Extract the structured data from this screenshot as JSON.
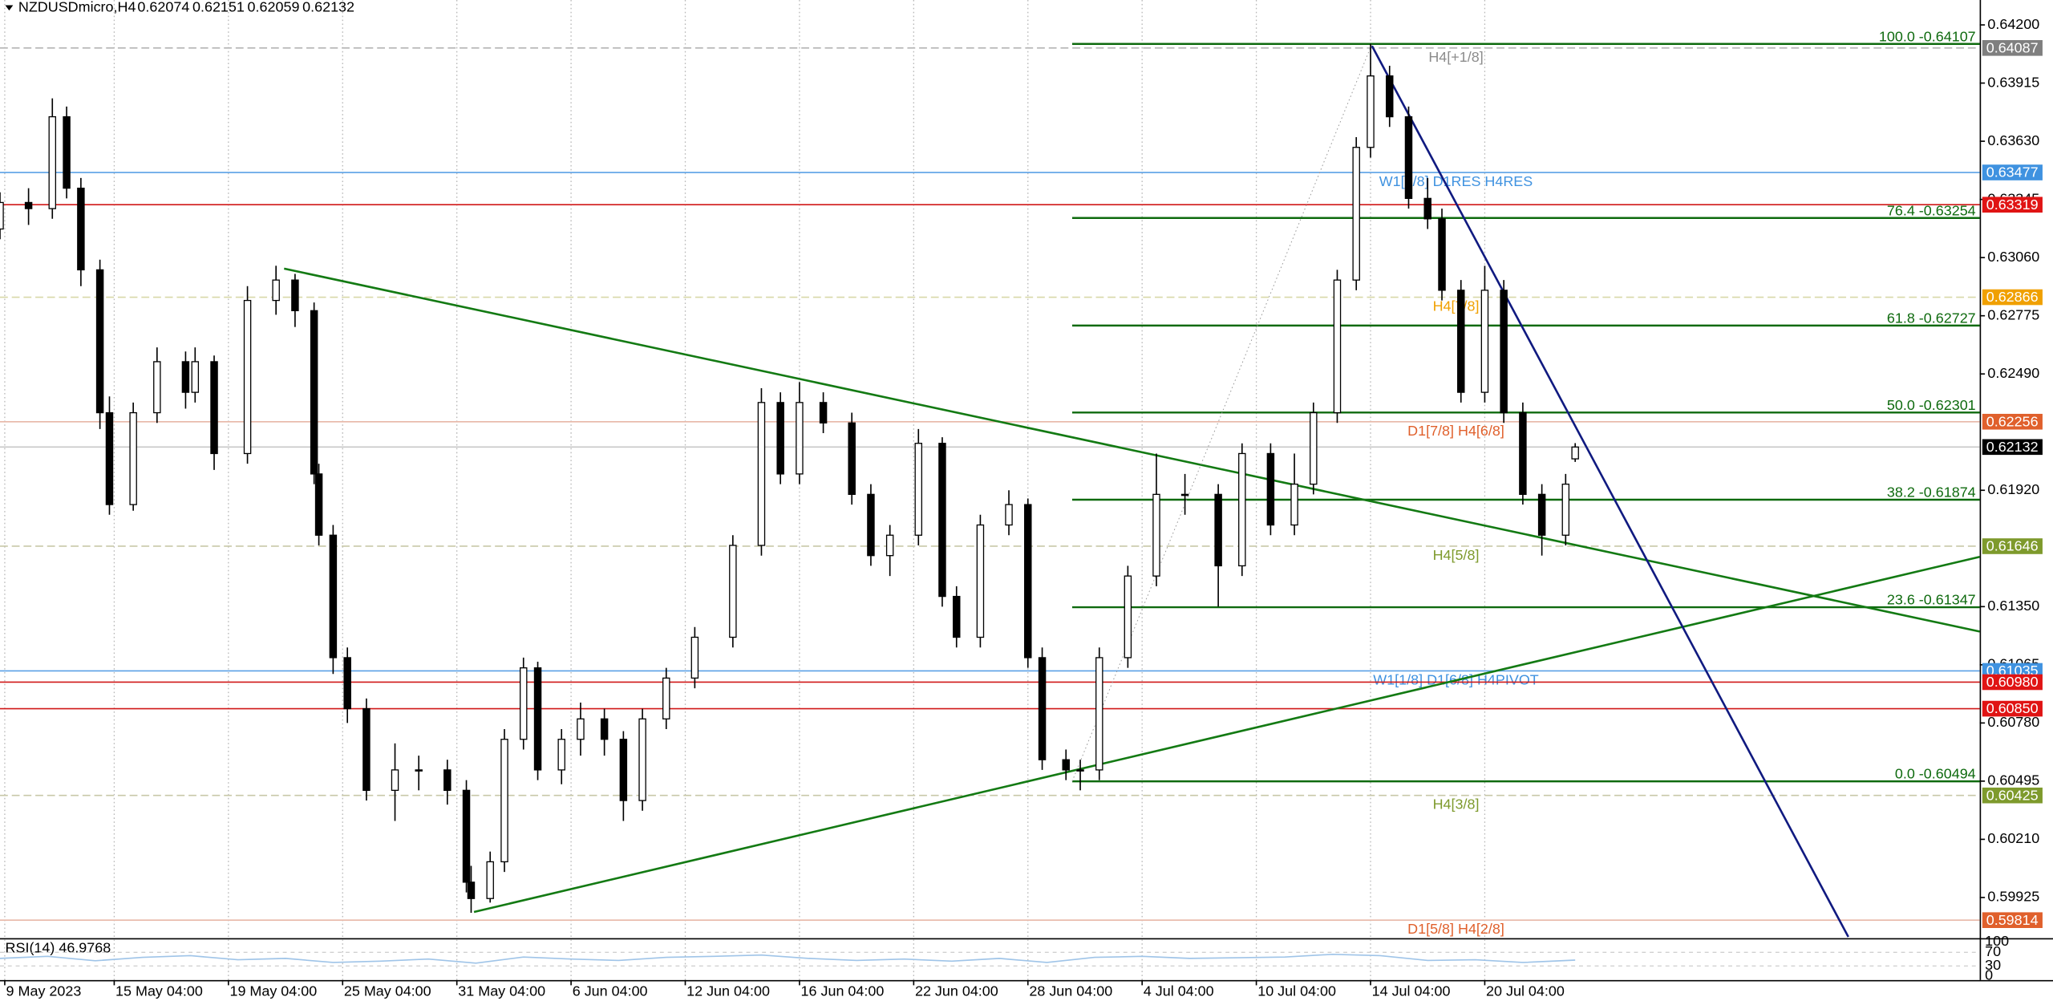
{
  "header": {
    "symbol": "NZDUSDmicro,H4",
    "open": 0.62074,
    "high": 0.62151,
    "low": 0.62059,
    "close": 0.62132
  },
  "chart_data": [
    {
      "type": "candlestick",
      "xlim": [
        0,
        416
      ],
      "ylim": [
        0.59726,
        0.64322
      ],
      "grid": true,
      "yticks": [
        {
          "value": 0.642,
          "label": "0.64200"
        },
        {
          "value": 0.63915,
          "label": "0.63915"
        },
        {
          "value": 0.6363,
          "label": "0.63630"
        },
        {
          "value": 0.63345,
          "label": "0.63345"
        },
        {
          "value": 0.6306,
          "label": "0.63060"
        },
        {
          "value": 0.62775,
          "label": "0.62775"
        },
        {
          "value": 0.6249,
          "label": "0.62490"
        },
        {
          "value": 0.6192,
          "label": "0.61920"
        },
        {
          "value": 0.6135,
          "label": "0.61350"
        },
        {
          "value": 0.61065,
          "label": "0.61065"
        },
        {
          "value": 0.6078,
          "label": "0.60780"
        },
        {
          "value": 0.60495,
          "label": "0.60495"
        },
        {
          "value": 0.6021,
          "label": "0.60210"
        },
        {
          "value": 0.59925,
          "label": "0.59925"
        }
      ],
      "xticks": [
        {
          "value": 1,
          "label": "9 May 2023"
        },
        {
          "value": 24,
          "label": "15 May 04:00"
        },
        {
          "value": 48,
          "label": "19 May 04:00"
        },
        {
          "value": 72,
          "label": "25 May 04:00"
        },
        {
          "value": 96,
          "label": "31 May 04:00"
        },
        {
          "value": 120,
          "label": "6 Jun 04:00"
        },
        {
          "value": 144,
          "label": "12 Jun 04:00"
        },
        {
          "value": 168,
          "label": "16 Jun 04:00"
        },
        {
          "value": 192,
          "label": "22 Jun 04:00"
        },
        {
          "value": 216,
          "label": "28 Jun 04:00"
        },
        {
          "value": 240,
          "label": "4 Jul 04:00"
        },
        {
          "value": 264,
          "label": "10 Jul 04:00"
        },
        {
          "value": 288,
          "label": "14 Jul 04:00"
        },
        {
          "value": 312,
          "label": "20 Jul 04:00"
        }
      ],
      "x": [
        0,
        6,
        11,
        14,
        17,
        21,
        23,
        28,
        33,
        39,
        41,
        45,
        52,
        58,
        62,
        66,
        67,
        70,
        73,
        77,
        83,
        88,
        94,
        98,
        99,
        103,
        106,
        110,
        113,
        118,
        122,
        127,
        131,
        135,
        140,
        146,
        154,
        160,
        164,
        168,
        173,
        179,
        183,
        187,
        193,
        198,
        201,
        206,
        212,
        216,
        219,
        224,
        227,
        231,
        237,
        243,
        249,
        256,
        261,
        267,
        272,
        276,
        281,
        285,
        288,
        292,
        296,
        300,
        303,
        307,
        312,
        316,
        320,
        324,
        329,
        331
      ],
      "open": [
        0.632,
        0.6333,
        0.633,
        0.6375,
        0.634,
        0.63,
        0.623,
        0.6185,
        0.623,
        0.6255,
        0.624,
        0.6255,
        0.621,
        0.6285,
        0.6295,
        0.628,
        0.62,
        0.617,
        0.611,
        0.6085,
        0.6045,
        0.6055,
        0.6055,
        0.6045,
        0.6,
        0.5992,
        0.601,
        0.607,
        0.6105,
        0.6055,
        0.607,
        0.608,
        0.607,
        0.604,
        0.608,
        0.61,
        0.612,
        0.6165,
        0.6235,
        0.62,
        0.6235,
        0.6225,
        0.619,
        0.616,
        0.617,
        0.6215,
        0.614,
        0.612,
        0.6175,
        0.6185,
        0.611,
        0.606,
        0.6055,
        0.6055,
        0.611,
        0.615,
        0.619,
        0.619,
        0.6155,
        0.621,
        0.6175,
        0.6195,
        0.623,
        0.6295,
        0.636,
        0.6395,
        0.6375,
        0.6335,
        0.6325,
        0.629,
        0.624,
        0.629,
        0.623,
        0.619,
        0.617,
        0.62074
      ],
      "high": [
        0.6338,
        0.634,
        0.6384,
        0.638,
        0.6345,
        0.6305,
        0.6238,
        0.6235,
        0.6262,
        0.626,
        0.6262,
        0.6258,
        0.6292,
        0.6302,
        0.6298,
        0.6284,
        0.6205,
        0.6175,
        0.6115,
        0.609,
        0.6068,
        0.6062,
        0.606,
        0.605,
        0.6008,
        0.6015,
        0.6075,
        0.611,
        0.6108,
        0.6075,
        0.6088,
        0.6085,
        0.6074,
        0.6085,
        0.6105,
        0.6125,
        0.617,
        0.6242,
        0.624,
        0.6245,
        0.624,
        0.623,
        0.6195,
        0.6175,
        0.6222,
        0.6218,
        0.6145,
        0.618,
        0.6192,
        0.6188,
        0.6115,
        0.6065,
        0.606,
        0.6115,
        0.6155,
        0.621,
        0.62,
        0.6195,
        0.6215,
        0.6215,
        0.621,
        0.6235,
        0.63,
        0.6365,
        0.64107,
        0.64,
        0.638,
        0.6345,
        0.633,
        0.6295,
        0.6302,
        0.6295,
        0.6235,
        0.6195,
        0.62,
        0.62151
      ],
      "low": [
        0.6315,
        0.6322,
        0.6325,
        0.6335,
        0.6292,
        0.6222,
        0.618,
        0.6182,
        0.6225,
        0.6232,
        0.6235,
        0.6202,
        0.6205,
        0.6278,
        0.6272,
        0.6195,
        0.6165,
        0.6102,
        0.6078,
        0.604,
        0.603,
        0.6045,
        0.6038,
        0.5995,
        0.5985,
        0.599,
        0.6005,
        0.6065,
        0.605,
        0.6048,
        0.6062,
        0.6062,
        0.603,
        0.6035,
        0.6075,
        0.6095,
        0.6115,
        0.616,
        0.6195,
        0.6195,
        0.622,
        0.6185,
        0.6155,
        0.615,
        0.6165,
        0.6135,
        0.6115,
        0.6115,
        0.617,
        0.6105,
        0.6055,
        0.605,
        0.6045,
        0.605,
        0.6105,
        0.6145,
        0.618,
        0.6135,
        0.615,
        0.617,
        0.617,
        0.619,
        0.6225,
        0.629,
        0.6355,
        0.637,
        0.633,
        0.632,
        0.6285,
        0.6235,
        0.6235,
        0.6225,
        0.6185,
        0.616,
        0.6165,
        0.62059
      ],
      "close": [
        0.6333,
        0.633,
        0.6375,
        0.634,
        0.63,
        0.623,
        0.6185,
        0.623,
        0.6255,
        0.624,
        0.6255,
        0.621,
        0.6285,
        0.6295,
        0.628,
        0.62,
        0.617,
        0.611,
        0.6085,
        0.6045,
        0.6055,
        0.6055,
        0.6045,
        0.6,
        0.5992,
        0.601,
        0.607,
        0.6105,
        0.6055,
        0.607,
        0.608,
        0.607,
        0.604,
        0.608,
        0.61,
        0.612,
        0.6165,
        0.6235,
        0.62,
        0.6235,
        0.6225,
        0.619,
        0.616,
        0.617,
        0.6215,
        0.614,
        0.612,
        0.6175,
        0.6185,
        0.611,
        0.606,
        0.6055,
        0.6055,
        0.611,
        0.615,
        0.619,
        0.619,
        0.6155,
        0.621,
        0.6175,
        0.6195,
        0.623,
        0.6295,
        0.636,
        0.6395,
        0.6375,
        0.6335,
        0.6325,
        0.629,
        0.624,
        0.629,
        0.623,
        0.619,
        0.617,
        0.6195,
        0.62132
      ],
      "levels": [
        {
          "value": 0.64087,
          "color": "#b4b4b4",
          "dashed": true,
          "tag": "H4[+1/8]",
          "tag_color": "#8c8c8c",
          "box_color": "#7f7f7f"
        },
        {
          "value": 0.63477,
          "color": "#5aa0e6",
          "dashed": false,
          "tag": "W1[2/8] D1RES H4RES",
          "tag_color": "#3f92e0",
          "box_color": "#3f92e0"
        },
        {
          "value": 0.63319,
          "color": "#d01818",
          "dashed": false,
          "box_color": "#e01414"
        },
        {
          "value": 0.62866,
          "color": "#d8d8a8",
          "dashed": true,
          "tag": "H4[7/8]",
          "tag_color": "#f0a000",
          "box_color": "#f0a000"
        },
        {
          "value": 0.62256,
          "color": "#e8b8a8",
          "dashed": false,
          "tag": "D1[7/8] H4[6/8]",
          "tag_color": "#e0602c",
          "box_color": "#e0602c"
        },
        {
          "value": 0.62132,
          "color": "#c8c8c8",
          "dashed": false,
          "box_color": "#000000"
        },
        {
          "value": 0.61646,
          "color": "#c8c8a8",
          "dashed": true,
          "tag": "H4[5/8]",
          "tag_color": "#7e9a2c",
          "box_color": "#7e9a2c"
        },
        {
          "value": 0.61035,
          "color": "#5aa0e6",
          "dashed": false,
          "tag": "W1[1/8] D1[6/8] H4PIVOT",
          "tag_color": "#3f92e0",
          "box_color": "#3f92e0"
        },
        {
          "value": 0.6098,
          "value_label": "0.60980",
          "color": "#d01818",
          "dashed": false,
          "box_color": "#e01414"
        },
        {
          "value": 0.6085,
          "value_label": "0.60850",
          "color": "#d01818",
          "dashed": false,
          "box_color": "#e01414"
        },
        {
          "value": 0.60425,
          "color": "#c8c8a8",
          "dashed": true,
          "tag": "H4[3/8]",
          "tag_color": "#7e9a2c",
          "box_color": "#7e9a2c"
        },
        {
          "value": 0.59814,
          "color": "#e8b8a8",
          "dashed": false,
          "tag": "D1[5/8] H4[2/8]",
          "tag_color": "#e0602c",
          "box_color": "#e0602c"
        }
      ],
      "fibo": {
        "start": 225.3,
        "color": "#0e6a0e",
        "levels": [
          {
            "label": "100.0 -0.64107",
            "value": 0.64107
          },
          {
            "label": "76.4 -0.63254",
            "value": 0.63254
          },
          {
            "label": "61.8 -0.62727",
            "value": 0.62727
          },
          {
            "label": "50.0 -0.62301",
            "value": 0.62301
          },
          {
            "label": "38.2 -0.61874",
            "value": 0.61874
          },
          {
            "label": "23.6 -0.61347",
            "value": 0.61347
          },
          {
            "label": "0.0 -0.60494",
            "value": 0.60494
          }
        ]
      },
      "trendlines": [
        {
          "x": [
            59.7,
            416
          ],
          "y": [
            0.63006,
            0.61228
          ],
          "color": "#137a13",
          "width": 1.6
        },
        {
          "x": [
            99.6,
            416
          ],
          "y": [
            0.59854,
            0.61594
          ],
          "color": "#137a13",
          "width": 1.6
        },
        {
          "x": [
            288.3,
            388.4
          ],
          "y": [
            0.64097,
            0.59732
          ],
          "color": "#101a80",
          "width": 1.6
        },
        {
          "x": [
            225.3,
            288.3
          ],
          "y": [
            0.60494,
            0.64107
          ],
          "color": "#999999",
          "width": 0.6,
          "dotted": true
        }
      ]
    },
    {
      "type": "line",
      "title": "RSI(14) 46.9768",
      "ylim": [
        0,
        100
      ],
      "yticks": [
        100,
        70,
        30,
        0
      ],
      "color": "#9fc4e8",
      "x": [
        0,
        10,
        20,
        30,
        40,
        50,
        60,
        70,
        80,
        90,
        100,
        110,
        120,
        130,
        140,
        150,
        160,
        170,
        180,
        190,
        200,
        210,
        220,
        230,
        240,
        250,
        260,
        270,
        280,
        290,
        300,
        310,
        320,
        331
      ],
      "values": [
        52,
        58,
        45,
        55,
        60,
        48,
        52,
        40,
        44,
        50,
        38,
        56,
        50,
        46,
        55,
        58,
        62,
        52,
        46,
        50,
        44,
        52,
        40,
        55,
        58,
        52,
        54,
        56,
        64,
        60,
        46,
        48,
        40,
        47
      ]
    }
  ]
}
